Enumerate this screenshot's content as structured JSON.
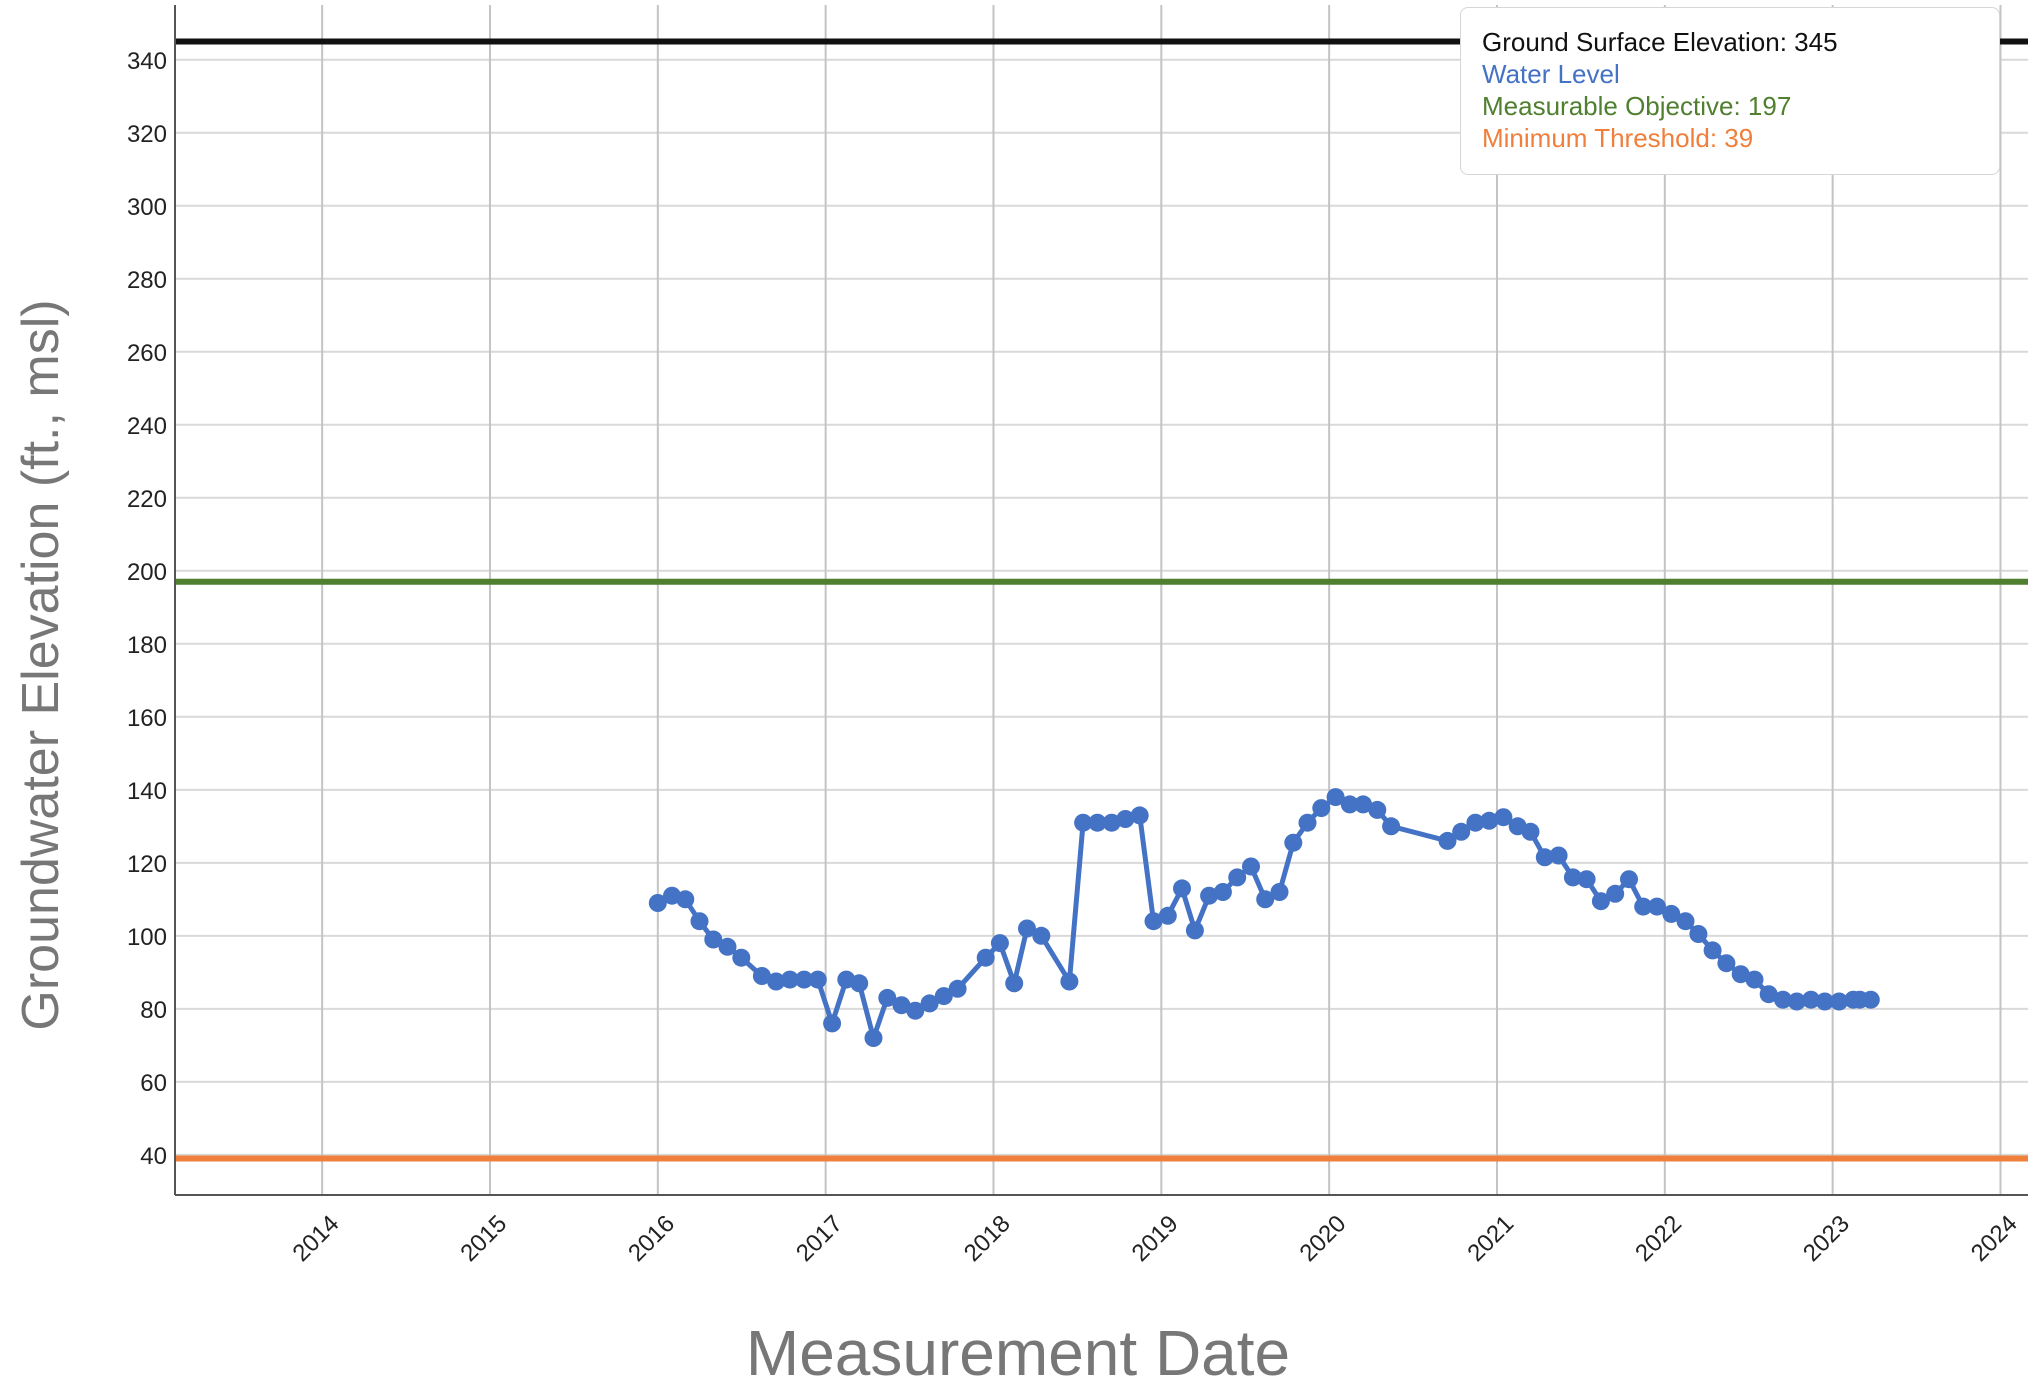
{
  "chart_data": {
    "type": "line",
    "xlabel": "Measurement Date",
    "ylabel": "Groundwater Elevation (ft., msl)",
    "xlim": [
      "2013-02-15",
      "2024-03-01"
    ],
    "ylim": [
      29,
      355
    ],
    "yticks": [
      40,
      60,
      80,
      100,
      120,
      140,
      160,
      180,
      200,
      220,
      240,
      260,
      280,
      300,
      320,
      340
    ],
    "xticks": [
      "2014",
      "2015",
      "2016",
      "2017",
      "2018",
      "2019",
      "2020",
      "2021",
      "2022",
      "2023",
      "2024"
    ],
    "grid": true,
    "legend_position": "top-right",
    "reference_lines": [
      {
        "name": "Ground Surface Elevation: 345",
        "value": 345,
        "color": "#111111"
      },
      {
        "name": "Measurable Objective: 197",
        "value": 197,
        "color": "#4f7f2f"
      },
      {
        "name": "Minimum Threshold: 39",
        "value": 39,
        "color": "#ef7f3a"
      }
    ],
    "series": [
      {
        "name": "Water Level",
        "color": "#4472c4",
        "points": [
          [
            "2016-01-01",
            109
          ],
          [
            "2016-02-01",
            111
          ],
          [
            "2016-03-01",
            110
          ],
          [
            "2016-04-01",
            104
          ],
          [
            "2016-05-01",
            99
          ],
          [
            "2016-06-01",
            97
          ],
          [
            "2016-07-01",
            94
          ],
          [
            "2016-08-15",
            89
          ],
          [
            "2016-09-15",
            87.5
          ],
          [
            "2016-10-15",
            88
          ],
          [
            "2016-11-15",
            88
          ],
          [
            "2016-12-15",
            88
          ],
          [
            "2017-01-15",
            76
          ],
          [
            "2017-02-15",
            88
          ],
          [
            "2017-03-15",
            87
          ],
          [
            "2017-04-15",
            72
          ],
          [
            "2017-05-15",
            83
          ],
          [
            "2017-06-15",
            81
          ],
          [
            "2017-07-15",
            79.5
          ],
          [
            "2017-08-15",
            81.5
          ],
          [
            "2017-09-15",
            83.5
          ],
          [
            "2017-10-15",
            85.5
          ],
          [
            "2017-12-15",
            94
          ],
          [
            "2018-01-15",
            98
          ],
          [
            "2018-02-15",
            87
          ],
          [
            "2018-03-15",
            102
          ],
          [
            "2018-04-15",
            100
          ],
          [
            "2018-06-15",
            87.5
          ],
          [
            "2018-07-15",
            131
          ],
          [
            "2018-08-15",
            131
          ],
          [
            "2018-09-15",
            131
          ],
          [
            "2018-10-15",
            132
          ],
          [
            "2018-11-15",
            133
          ],
          [
            "2018-12-15",
            104
          ],
          [
            "2019-01-15",
            105.5
          ],
          [
            "2019-02-15",
            113
          ],
          [
            "2019-03-15",
            101.5
          ],
          [
            "2019-04-15",
            111
          ],
          [
            "2019-05-15",
            112
          ],
          [
            "2019-06-15",
            116
          ],
          [
            "2019-07-15",
            119
          ],
          [
            "2019-08-15",
            110
          ],
          [
            "2019-09-15",
            112
          ],
          [
            "2019-10-15",
            125.5
          ],
          [
            "2019-11-15",
            131
          ],
          [
            "2019-12-15",
            135
          ],
          [
            "2020-01-15",
            138
          ],
          [
            "2020-02-15",
            136
          ],
          [
            "2020-03-15",
            136
          ],
          [
            "2020-04-15",
            134.5
          ],
          [
            "2020-05-15",
            130
          ],
          [
            "2020-09-15",
            126
          ],
          [
            "2020-10-15",
            128.5
          ],
          [
            "2020-11-15",
            131
          ],
          [
            "2020-12-15",
            131.5
          ],
          [
            "2021-01-15",
            132.5
          ],
          [
            "2021-02-15",
            130
          ],
          [
            "2021-03-15",
            128.5
          ],
          [
            "2021-04-15",
            121.5
          ],
          [
            "2021-05-15",
            122
          ],
          [
            "2021-06-15",
            116
          ],
          [
            "2021-07-15",
            115.5
          ],
          [
            "2021-08-15",
            109.5
          ],
          [
            "2021-09-15",
            111.5
          ],
          [
            "2021-10-15",
            115.5
          ],
          [
            "2021-11-15",
            108
          ],
          [
            "2021-12-15",
            108
          ],
          [
            "2022-01-15",
            106
          ],
          [
            "2022-02-15",
            104
          ],
          [
            "2022-03-15",
            100.5
          ],
          [
            "2022-04-15",
            96
          ],
          [
            "2022-05-15",
            92.5
          ],
          [
            "2022-06-15",
            89.5
          ],
          [
            "2022-07-15",
            88
          ],
          [
            "2022-08-15",
            84
          ],
          [
            "2022-09-15",
            82.5
          ],
          [
            "2022-10-15",
            82
          ],
          [
            "2022-11-15",
            82.5
          ],
          [
            "2022-12-15",
            82
          ],
          [
            "2023-01-15",
            82
          ],
          [
            "2023-02-15",
            82.5
          ],
          [
            "2023-03-01",
            82.5
          ],
          [
            "2023-03-25",
            82.5
          ]
        ]
      }
    ]
  }
}
